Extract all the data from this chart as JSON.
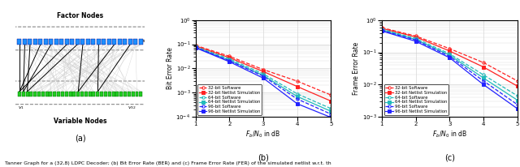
{
  "snr": [
    1,
    2,
    3,
    4,
    5
  ],
  "ber": {
    "32bit_sw": [
      0.09,
      0.032,
      0.009,
      0.003,
      0.0008
    ],
    "32bit_nl": [
      0.085,
      0.028,
      0.0075,
      0.0018,
      0.00045
    ],
    "64bit_sw": [
      0.08,
      0.025,
      0.006,
      0.0009,
      0.00022
    ],
    "64bit_nl": [
      0.076,
      0.022,
      0.0052,
      0.0007,
      0.00017
    ],
    "96bit_sw": [
      0.075,
      0.021,
      0.0048,
      0.00055,
      0.00013
    ],
    "96bit_nl": [
      0.072,
      0.019,
      0.004,
      0.00035,
      9.5e-05
    ]
  },
  "fer": {
    "32bit_sw": [
      0.58,
      0.32,
      0.13,
      0.048,
      0.013
    ],
    "32bit_nl": [
      0.55,
      0.3,
      0.11,
      0.035,
      0.009
    ],
    "64bit_sw": [
      0.52,
      0.27,
      0.09,
      0.02,
      0.0045
    ],
    "64bit_nl": [
      0.5,
      0.25,
      0.082,
      0.016,
      0.0033
    ],
    "96bit_sw": [
      0.48,
      0.24,
      0.075,
      0.013,
      0.0024
    ],
    "96bit_nl": [
      0.46,
      0.22,
      0.068,
      0.01,
      0.0018
    ]
  },
  "colors": {
    "32bit": "#FF2222",
    "64bit": "#22BBBB",
    "96bit": "#2222FF"
  },
  "xlabel": "$F_{b}/N_0$ in dB",
  "ylabel_ber": "Bit Error Rate",
  "ylabel_fer": "Frame Error Rate",
  "label_a": "(a)",
  "label_b": "(b)",
  "label_c": "(c)",
  "legend_entries": [
    "32-bit Software",
    "32-bit Netlist Simulation",
    "64-bit Software",
    "64-bit Netlist Simulation",
    "96-bit Software",
    "96-bit Netlist Simulation"
  ],
  "factor_nodes_label": "Factor Nodes",
  "variable_nodes_label": "Variable Nodes",
  "caption": "Tanner Graph for a (32,8) LDPC Decoder; (b) Bit Error Rate (BER) and (c) Frame Error Rate (FER) of the simulated netlist w.r.t. th"
}
